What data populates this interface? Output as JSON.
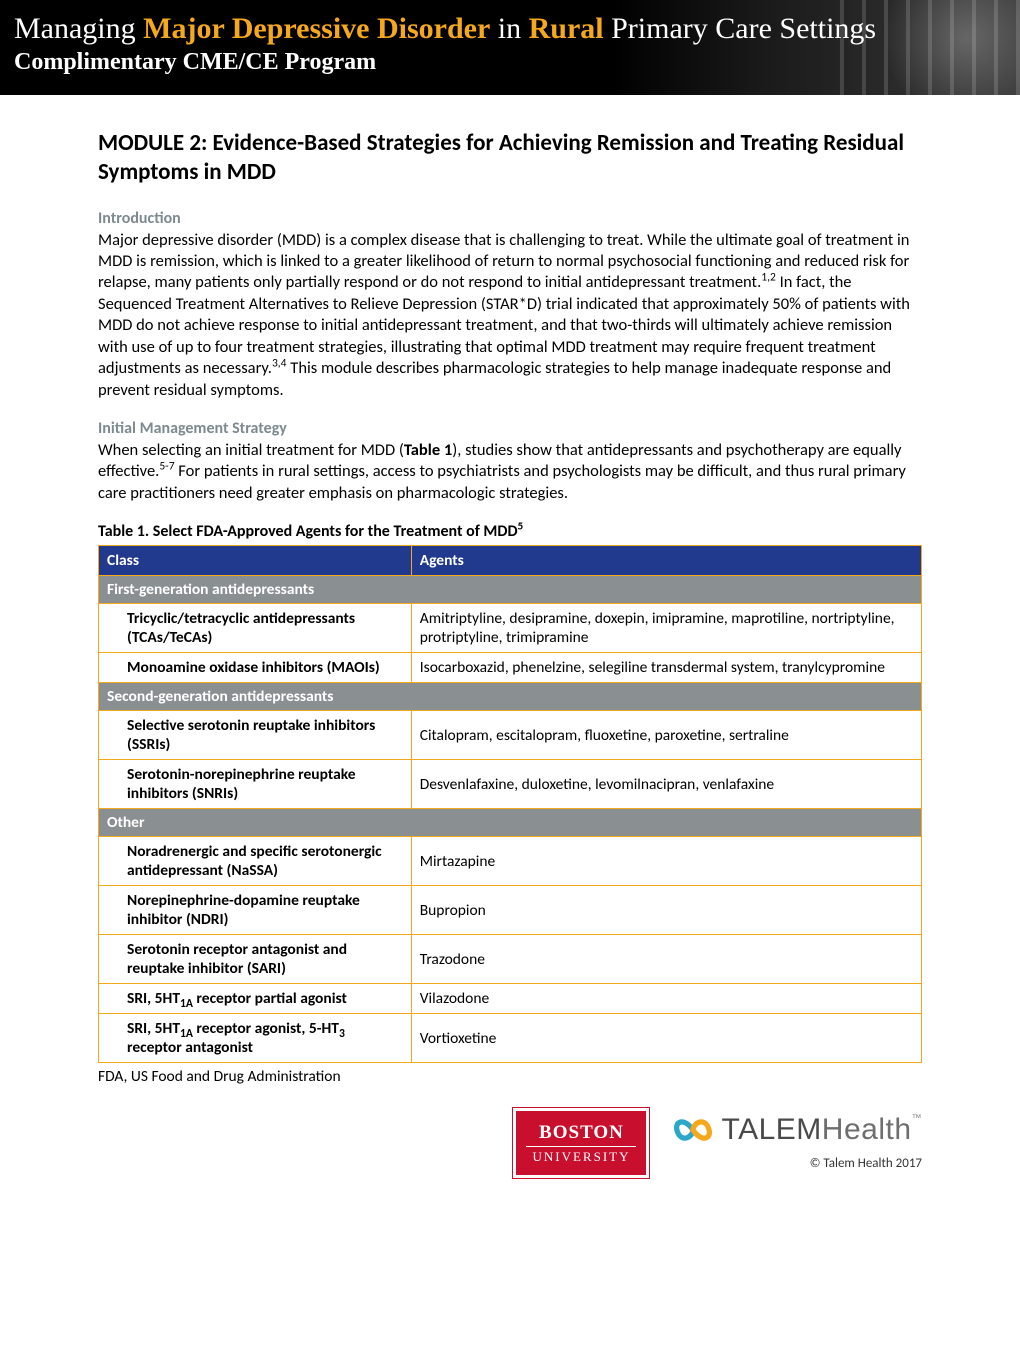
{
  "banner": {
    "title_parts": {
      "a": "Managing ",
      "b": "Major Depressive Disorder",
      "c": " in ",
      "d": "Rural",
      "e": " Primary Care Settings"
    },
    "subtitle": "Complimentary CME/CE Program",
    "highlight_color": "#f6a81c",
    "bg_color": "#000000",
    "text_color": "#ffffff"
  },
  "module": {
    "title": "MODULE 2: Evidence-Based Strategies for Achieving Remission and Treating Residual Symptoms in MDD"
  },
  "sections": {
    "intro_head": "Introduction",
    "intro_body_parts": {
      "p1a": "Major depressive disorder (MDD) is a complex disease that is challenging to treat. While the ultimate goal of treatment in MDD is remission, which is linked to a greater likelihood of return to normal psychosocial functioning and reduced risk for relapse, many patients only partially respond or do not respond to initial antidepressant treatment.",
      "p1_sup1": "1,2",
      "p1b": " In fact, the Sequenced Treatment Alternatives to Relieve Depression (STAR*D) trial indicated that approximately 50% of patients with MDD do not achieve response to initial antidepressant treatment, and that two-thirds will ultimately achieve remission with use of up to four treatment strategies, illustrating that optimal MDD treatment may require frequent treatment adjustments as necessary.",
      "p1_sup2": "3,4",
      "p1c": " This module describes pharmacologic strategies to help manage inadequate response and prevent residual symptoms."
    },
    "strategy_head": "Initial Management Strategy",
    "strategy_parts": {
      "a": "When selecting an initial treatment for MDD (",
      "b_bold": "Table 1",
      "c": "), studies show that antidepressants and psychotherapy are equally effective.",
      "sup": "5-7",
      "d": " For patients in rural settings, access to psychiatrists and psychologists may be difficult, and thus rural primary care practitioners need greater emphasis on pharmacologic strategies."
    }
  },
  "table1": {
    "caption_main": "Table 1. Select FDA-Approved Agents for the Treatment of MDD",
    "caption_sup": "5",
    "header": {
      "col1": "Class",
      "col2": "Agents"
    },
    "header_bg": "#223a8e",
    "border_color": "#f6a81c",
    "group_bg": "#8a8f92",
    "groups": [
      {
        "label": "First-generation antidepressants",
        "rows": [
          {
            "class": "Tricyclic/tetracyclic antidepressants (TCAs/TeCAs)",
            "agents": "Amitriptyline, desipramine, doxepin, imipramine, maprotiline, nortriptyline, protriptyline, trimipramine"
          },
          {
            "class": "Monoamine oxidase inhibitors (MAOIs)",
            "agents": "Isocarboxazid, phenelzine, selegiline transdermal system, tranylcypromine"
          }
        ]
      },
      {
        "label": "Second-generation antidepressants",
        "rows": [
          {
            "class": "Selective serotonin reuptake inhibitors (SSRIs)",
            "agents": "Citalopram, escitalopram, fluoxetine, paroxetine, sertraline"
          },
          {
            "class": "Serotonin-norepinephrine reuptake inhibitors (SNRIs)",
            "agents": "Desvenlafaxine, duloxetine, levomilnacipran, venlafaxine"
          }
        ]
      },
      {
        "label": "Other",
        "rows": [
          {
            "class": "Noradrenergic and specific serotonergic antidepressant (NaSSA)",
            "agents": "Mirtazapine"
          },
          {
            "class": "Norepinephrine-dopamine reuptake inhibitor (NDRI)",
            "agents": "Bupropion"
          },
          {
            "class": "Serotonin receptor antagonist and reuptake inhibitor (SARI)",
            "agents": "Trazodone"
          },
          {
            "class_html": "SRI, 5HT<sub>1A</sub> receptor partial agonist",
            "agents": "Vilazodone"
          },
          {
            "class_html": "SRI, 5HT<sub>1A</sub> receptor agonist, 5-HT<sub>3</sub> receptor antagonist",
            "agents": "Vortioxetine"
          }
        ]
      }
    ],
    "footnote": "FDA, US Food and Drug Administration"
  },
  "footer": {
    "boston": {
      "line1": "BOSTON",
      "line2": "UNIVERSITY",
      "bg": "#c8102e"
    },
    "talem": {
      "word1": "TALEM",
      "word2": "Health",
      "copyright": "© Talem Health 2017",
      "color1": "#2aa7c9",
      "color2": "#f6a81c"
    }
  }
}
